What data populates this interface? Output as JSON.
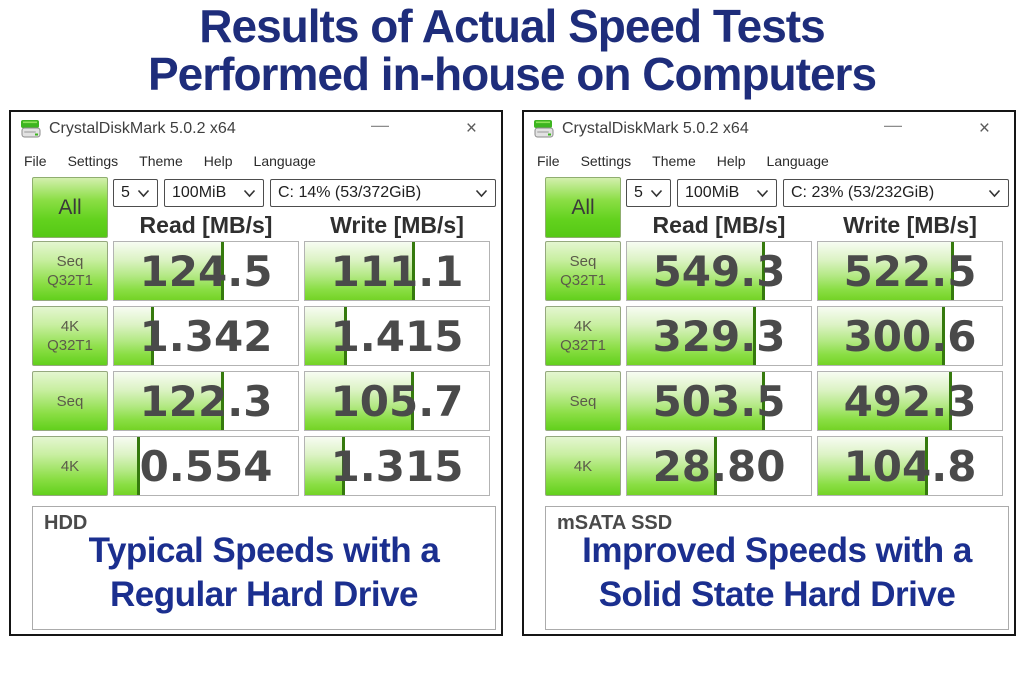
{
  "page": {
    "title_line1": "Results of Actual Speed Tests",
    "title_line2": "Performed in-house on Computers"
  },
  "icons": {
    "minimize": "—",
    "close": "×",
    "app_icon": "disk-stack",
    "dropdown_chevron": "chevron-down"
  },
  "colors": {
    "title_navy": "#1e2d7b",
    "caption_navy": "#1b2f8f",
    "bar_green": "#74d326",
    "bar_marker_green": "#357a0d",
    "button_green": "#62d01c",
    "value_text": "#4a4a4a"
  },
  "windows": [
    {
      "title": "CrystalDiskMark 5.0.2 x64",
      "menu": [
        "File",
        "Settings",
        "Theme",
        "Help",
        "Language"
      ],
      "controls": {
        "all": "All",
        "count": "5",
        "size": "100MiB",
        "drive": "C: 14% (53/372GiB)"
      },
      "headers": {
        "read": "Read [MB/s]",
        "write": "Write [MB/s]"
      },
      "rows": [
        {
          "label1": "Seq",
          "label2": "Q32T1",
          "read": "124.5",
          "read_fill": 60,
          "write": "111.1",
          "write_fill": 60
        },
        {
          "label1": "4K",
          "label2": "Q32T1",
          "read": "1.342",
          "read_fill": 22,
          "write": "1.415",
          "write_fill": 23
        },
        {
          "label1": "Seq",
          "label2": "",
          "read": "122.3",
          "read_fill": 60,
          "write": "105.7",
          "write_fill": 59
        },
        {
          "label1": "4K",
          "label2": "",
          "read": "0.554",
          "read_fill": 14,
          "write": "1.315",
          "write_fill": 22
        }
      ],
      "footer": {
        "drive_type": "HDD",
        "caption1": "Typical Speeds with a",
        "caption2": "Regular Hard Drive"
      }
    },
    {
      "title": "CrystalDiskMark 5.0.2 x64",
      "menu": [
        "File",
        "Settings",
        "Theme",
        "Help",
        "Language"
      ],
      "controls": {
        "all": "All",
        "count": "5",
        "size": "100MiB",
        "drive": "C: 23% (53/232GiB)"
      },
      "headers": {
        "read": "Read [MB/s]",
        "write": "Write [MB/s]"
      },
      "rows": [
        {
          "label1": "Seq",
          "label2": "Q32T1",
          "read": "549.3",
          "read_fill": 75,
          "write": "522.5",
          "write_fill": 74
        },
        {
          "label1": "4K",
          "label2": "Q32T1",
          "read": "329.3",
          "read_fill": 70,
          "write": "300.6",
          "write_fill": 69
        },
        {
          "label1": "Seq",
          "label2": "",
          "read": "503.5",
          "read_fill": 75,
          "write": "492.3",
          "write_fill": 73
        },
        {
          "label1": "4K",
          "label2": "",
          "read": "28.80",
          "read_fill": 49,
          "write": "104.8",
          "write_fill": 60
        }
      ],
      "footer": {
        "drive_type": "mSATA SSD",
        "caption1": "Improved Speeds with a",
        "caption2": "Solid State Hard Drive"
      }
    }
  ]
}
